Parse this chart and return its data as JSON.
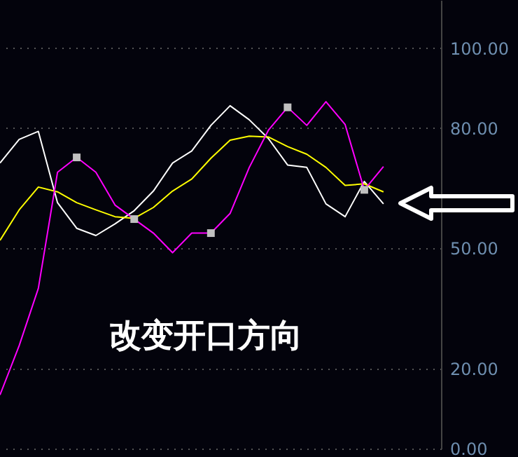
{
  "chart_data": {
    "type": "line",
    "categories": [
      null,
      null,
      null,
      null,
      null,
      null,
      null,
      null,
      null,
      null,
      null,
      null,
      null,
      null,
      null,
      null,
      null,
      null,
      null,
      null,
      null,
      null,
      null,
      null
    ],
    "series": [
      {
        "color": "#ffffff",
        "values": [
          71.3,
          77.2,
          79.2,
          61.4,
          55.0,
          53.2,
          56.1,
          59.4,
          64.3,
          71.3,
          74.3,
          80.7,
          85.6,
          82.1,
          77.4,
          70.8,
          70.2,
          61.1,
          57.9,
          66.7,
          61.1,
          null,
          null,
          null
        ]
      },
      {
        "color": "#ffff00",
        "values": [
          52.0,
          59.6,
          65.3,
          64.1,
          61.4,
          59.6,
          57.9,
          57.5,
          60.2,
          64.3,
          67.3,
          72.5,
          77.0,
          78.0,
          77.8,
          75.4,
          73.5,
          70.2,
          65.7,
          66.1,
          64.1,
          null,
          null,
          null
        ]
      },
      {
        "color": "#ff00ff",
        "values": [
          13.4,
          25.7,
          40.0,
          69.0,
          72.7,
          69.0,
          60.8,
          57.3,
          53.8,
          48.9,
          53.8,
          53.8,
          58.7,
          70.2,
          79.5,
          85.2,
          80.7,
          86.6,
          80.9,
          64.6,
          70.4,
          null,
          null,
          null
        ]
      },
      {
        "type": "scatter",
        "color": "#c0c0c0",
        "marker": "square",
        "values": [
          null,
          null,
          null,
          null,
          72.7,
          null,
          null,
          57.3,
          null,
          null,
          null,
          53.8,
          null,
          null,
          null,
          85.2,
          null,
          null,
          null,
          64.6,
          null,
          null,
          null,
          null
        ]
      }
    ],
    "ylim": [
      0,
      112
    ],
    "yticks": [
      {
        "value": 0,
        "label": "0.00"
      },
      {
        "value": 20,
        "label": "20.00"
      },
      {
        "value": 50,
        "label": "50.00"
      },
      {
        "value": 80,
        "label": "80.00"
      },
      {
        "value": 100,
        "label": "100.00"
      }
    ],
    "grid": "y",
    "marker": "none",
    "line_style": "solid",
    "annotations": [
      "改变开口方向"
    ]
  }
}
